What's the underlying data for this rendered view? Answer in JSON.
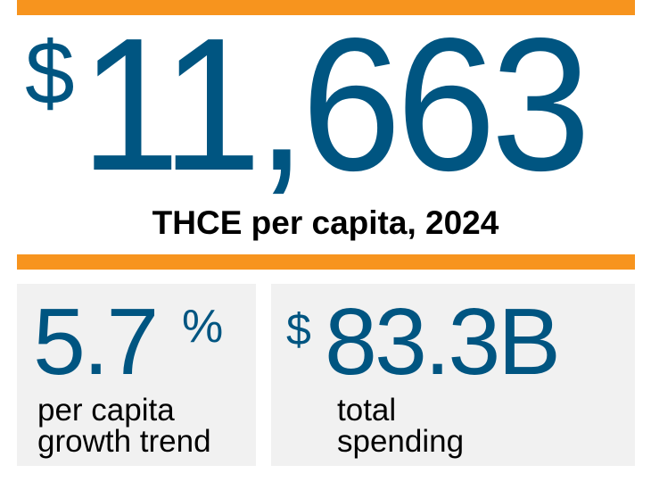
{
  "colors": {
    "accent": "#F7941E",
    "value": "#005581",
    "panel": "#F1F1F1"
  },
  "headline": {
    "currency": "$",
    "value": "11,663",
    "label": "THCE per capita, 2024"
  },
  "stats": [
    {
      "value": "5.7",
      "unit": "%",
      "label_lines": [
        "per capita",
        "growth trend"
      ]
    },
    {
      "currency": "$",
      "value": "83.3B",
      "label_lines": [
        "total",
        "spending"
      ]
    }
  ]
}
